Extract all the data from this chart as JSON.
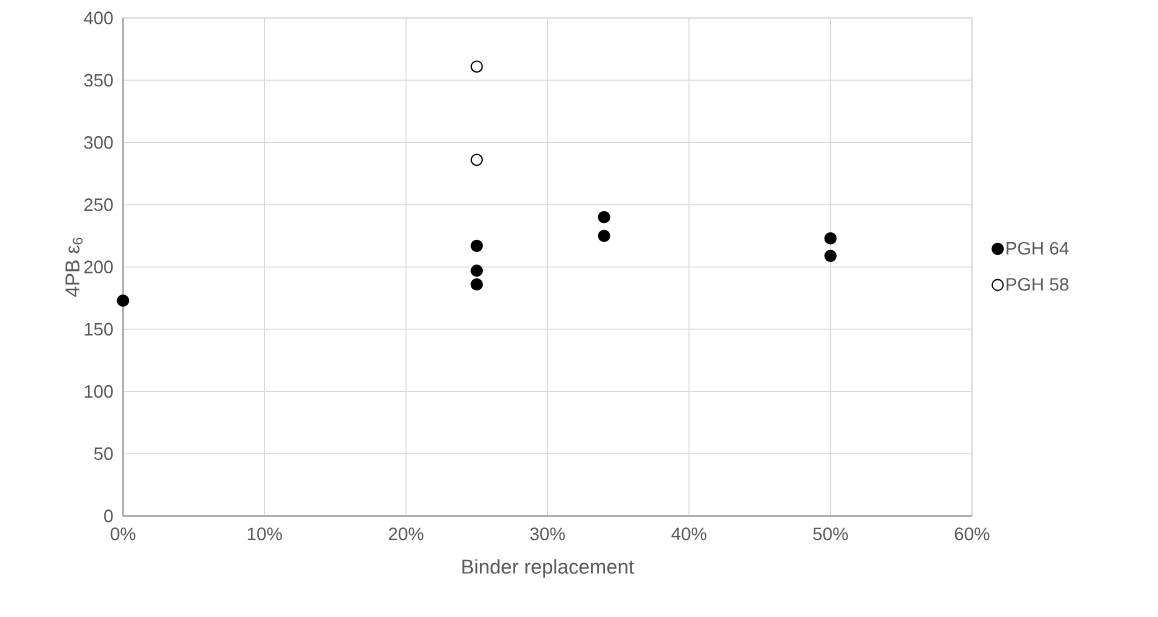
{
  "chart_data": {
    "type": "scatter",
    "xlabel": "Binder replacement",
    "ylabel": "4PB ε$_{6}$",
    "series": [
      {
        "name": "PGH 64",
        "color": "#000000",
        "x": [
          0,
          25,
          25,
          25,
          34,
          34,
          50,
          50
        ],
        "values": [
          173,
          217,
          197,
          186,
          240,
          225,
          223,
          209
        ]
      },
      {
        "name": "PGH 58",
        "color": "#ffffff",
        "x": [
          25,
          25
        ],
        "values": [
          361,
          286
        ]
      }
    ],
    "xlim": [
      0,
      60
    ],
    "ylim": [
      0,
      400
    ],
    "xticks": [
      {
        "value": 0,
        "label": "0%"
      },
      {
        "value": 10,
        "label": "10%"
      },
      {
        "value": 20,
        "label": "20%"
      },
      {
        "value": 30,
        "label": "30%"
      },
      {
        "value": 40,
        "label": "40%"
      },
      {
        "value": 50,
        "label": "50%"
      },
      {
        "value": 60,
        "label": "60%"
      }
    ],
    "yticks": [
      0,
      50,
      100,
      150,
      200,
      250,
      300,
      350,
      400
    ],
    "grid": true,
    "legend": "right"
  }
}
